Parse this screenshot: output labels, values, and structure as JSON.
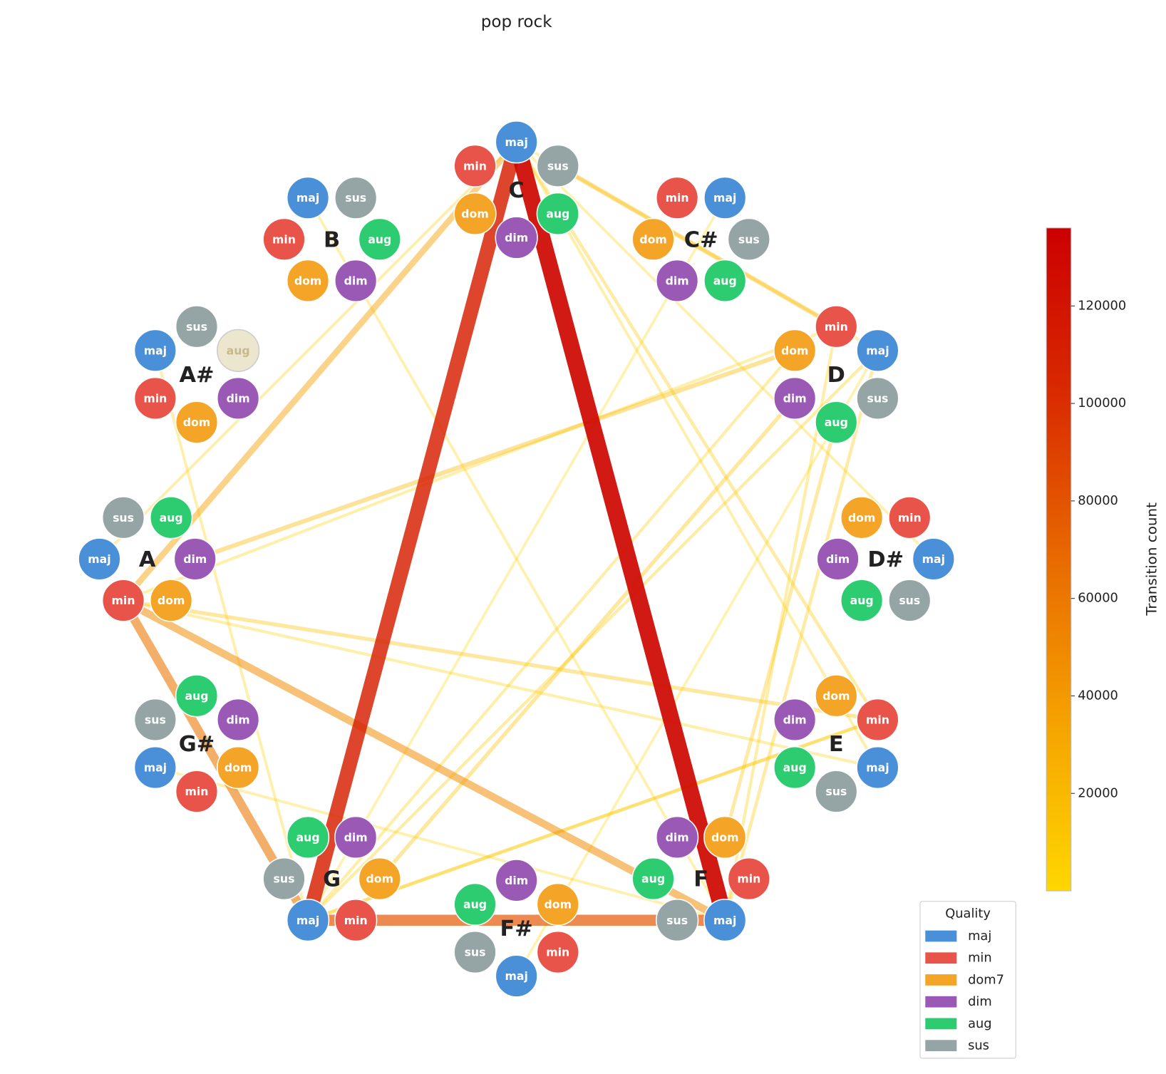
{
  "title": "pop rock",
  "roots": [
    "C",
    "C#",
    "D",
    "D#",
    "E",
    "F",
    "F#",
    "G",
    "G#",
    "A",
    "A#",
    "B"
  ],
  "node_labels": [
    "maj",
    "min",
    "dom",
    "dim",
    "aug",
    "sus"
  ],
  "node_colors": [
    "#4a90d9",
    "#e8534a",
    "#f4a426",
    "#9b59b6",
    "#2ecc71",
    "#95a5a6"
  ],
  "inactive_nodes": [
    [
      10,
      4
    ]
  ],
  "edges": [
    {
      "source": [
        1,
        0
      ],
      "target": [
        7,
        0
      ],
      "count": 3000
    },
    {
      "source": [
        6,
        0
      ],
      "target": [
        2,
        0
      ],
      "count": 3000
    },
    {
      "source": [
        11,
        0
      ],
      "target": [
        5,
        0
      ],
      "count": 4000
    },
    {
      "source": [
        3,
        0
      ],
      "target": [
        0,
        0
      ],
      "count": 4000
    },
    {
      "source": [
        8,
        0
      ],
      "target": [
        5,
        0
      ],
      "count": 4000
    },
    {
      "source": [
        0,
        0
      ],
      "target": [
        9,
        0
      ],
      "count": 5000
    },
    {
      "source": [
        0,
        0
      ],
      "target": [
        2,
        0
      ],
      "count": 5000
    },
    {
      "source": [
        10,
        0
      ],
      "target": [
        7,
        0
      ],
      "count": 5000
    },
    {
      "source": [
        4,
        0
      ],
      "target": [
        0,
        0
      ],
      "count": 5000
    },
    {
      "source": [
        4,
        0
      ],
      "target": [
        9,
        1
      ],
      "count": 6000
    },
    {
      "source": [
        7,
        0
      ],
      "target": [
        4,
        1
      ],
      "count": 6000
    },
    {
      "source": [
        9,
        1
      ],
      "target": [
        2,
        1
      ],
      "count": 6000
    },
    {
      "source": [
        5,
        0
      ],
      "target": [
        2,
        1
      ],
      "count": 7000
    },
    {
      "source": [
        2,
        2
      ],
      "target": [
        7,
        0
      ],
      "count": 7000
    },
    {
      "source": [
        2,
        0
      ],
      "target": [
        7,
        0
      ],
      "count": 8000
    },
    {
      "source": [
        0,
        0
      ],
      "target": [
        4,
        1
      ],
      "count": 10000
    },
    {
      "source": [
        5,
        0
      ],
      "target": [
        2,
        0
      ],
      "count": 10000
    },
    {
      "source": [
        5,
        2
      ],
      "target": [
        2,
        4
      ],
      "count": 12000
    },
    {
      "source": [
        7,
        0
      ],
      "target": [
        4,
        1
      ],
      "count": 12000
    },
    {
      "source": [
        7,
        2
      ],
      "target": [
        2,
        3
      ],
      "count": 15000
    },
    {
      "source": [
        9,
        1
      ],
      "target": [
        4,
        1
      ],
      "count": 15000
    },
    {
      "source": [
        9,
        3
      ],
      "target": [
        2,
        2
      ],
      "count": 20000
    },
    {
      "source": [
        0,
        5
      ],
      "target": [
        2,
        1
      ],
      "count": 22000
    },
    {
      "source": [
        9,
        1
      ],
      "target": [
        0,
        0
      ],
      "count": 35000
    },
    {
      "source": [
        9,
        1
      ],
      "target": [
        5,
        0
      ],
      "count": 48000
    },
    {
      "source": [
        9,
        1
      ],
      "target": [
        7,
        0
      ],
      "count": 60000
    },
    {
      "source": [
        7,
        0
      ],
      "target": [
        5,
        0
      ],
      "count": 80000
    },
    {
      "source": [
        0,
        0
      ],
      "target": [
        7,
        0
      ],
      "count": 110000
    },
    {
      "source": [
        0,
        0
      ],
      "target": [
        5,
        0
      ],
      "count": 130000
    }
  ],
  "colormap": [
    "#ffd700",
    "#f5a300",
    "#e86a00",
    "#d92a00",
    "#cc0000"
  ],
  "colorbar": {
    "label": "Transition count",
    "ylim": [
      0,
      136000
    ],
    "yticks": [
      20000,
      40000,
      60000,
      80000,
      100000,
      120000
    ]
  },
  "legend": {
    "title": "Quality",
    "entries": [
      {
        "name": "maj",
        "color": "#4a90d9"
      },
      {
        "name": "min",
        "color": "#e8534a"
      },
      {
        "name": "dom7",
        "color": "#f4a426"
      },
      {
        "name": "dim",
        "color": "#9b59b6"
      },
      {
        "name": "aug",
        "color": "#2ecc71"
      },
      {
        "name": "sus",
        "color": "#95a5a6"
      }
    ]
  }
}
